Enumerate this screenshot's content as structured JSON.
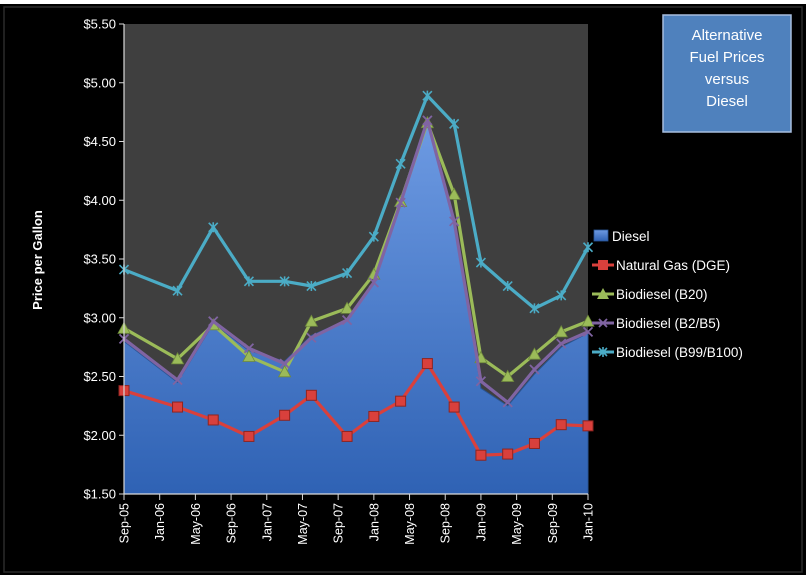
{
  "chart_data": {
    "type": "line",
    "title_lines": [
      "Alternative",
      "Fuel Prices",
      "versus",
      "Diesel"
    ],
    "xlabel": "",
    "ylabel": "Price per Gallon",
    "ylim": [
      1.5,
      5.5
    ],
    "y_ticks": [
      "$1.50",
      "$2.00",
      "$2.50",
      "$3.00",
      "$3.50",
      "$4.00",
      "$4.50",
      "$5.00",
      "$5.50"
    ],
    "x_tick_labels": [
      "Sep-05",
      "Jan-06",
      "May-06",
      "Sep-06",
      "Jan-07",
      "May-07",
      "Sep-07",
      "Jan-08",
      "May-08",
      "Sep-08",
      "Jan-09",
      "May-09",
      "Sep-09",
      "Jan-10"
    ],
    "x": [
      "2005-09",
      "2006-03",
      "2006-07",
      "2006-11",
      "2007-03",
      "2007-06",
      "2007-10",
      "2008-01",
      "2008-04",
      "2008-07",
      "2008-10",
      "2009-01",
      "2009-04",
      "2009-07",
      "2009-10",
      "2010-01"
    ],
    "grid": "none",
    "legend_position": "right",
    "background_color": "#3f3f3f",
    "series": [
      {
        "name": "Diesel",
        "style": "area",
        "color": "#4a7ed0",
        "values": [
          2.8,
          2.45,
          2.95,
          2.72,
          2.63,
          2.85,
          2.98,
          3.3,
          3.98,
          4.7,
          3.85,
          2.4,
          2.25,
          2.52,
          2.75,
          2.87
        ]
      },
      {
        "name": "Natural Gas (DGE)",
        "marker": "square",
        "color": "#d9403c",
        "values": [
          2.38,
          2.24,
          2.13,
          1.99,
          2.17,
          2.34,
          1.99,
          2.16,
          2.29,
          2.61,
          2.24,
          1.83,
          1.84,
          1.93,
          2.09,
          2.08
        ]
      },
      {
        "name": "Biodiesel (B20)",
        "marker": "triangle",
        "color": "#9bbb59",
        "values": [
          2.91,
          2.65,
          2.94,
          2.67,
          2.54,
          2.97,
          3.08,
          3.37,
          3.99,
          4.66,
          4.05,
          2.66,
          2.5,
          2.69,
          2.88,
          2.97
        ]
      },
      {
        "name": "Biodiesel (B2/B5)",
        "marker": "x",
        "color": "#8064a2",
        "values": [
          2.82,
          2.47,
          2.97,
          2.74,
          2.61,
          2.83,
          2.98,
          3.3,
          3.98,
          4.68,
          3.82,
          2.46,
          2.28,
          2.56,
          2.78,
          2.88
        ]
      },
      {
        "name": "Biodiesel (B99/B100)",
        "marker": "asterisk",
        "color": "#4bacc6",
        "values": [
          3.41,
          3.23,
          3.77,
          3.31,
          3.31,
          3.27,
          3.38,
          3.69,
          4.31,
          4.89,
          4.65,
          3.47,
          3.27,
          3.08,
          3.19,
          3.6
        ]
      }
    ]
  }
}
